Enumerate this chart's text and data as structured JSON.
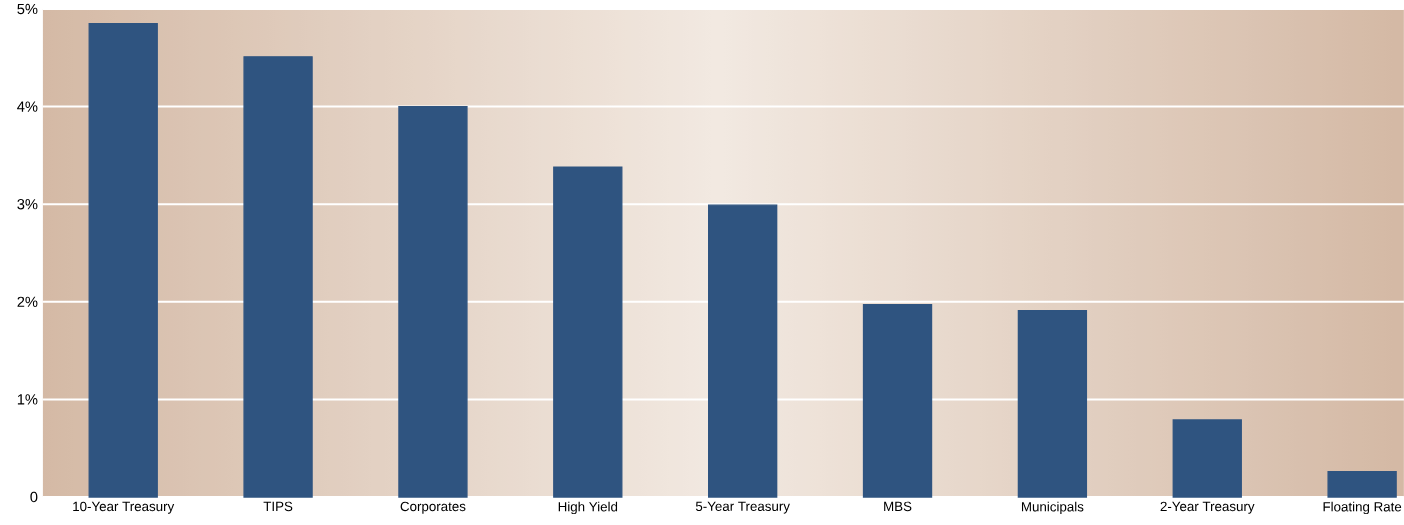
{
  "chart_data": {
    "type": "bar",
    "categories": [
      "10-Year Treasury",
      "TIPS",
      "Corporates",
      "High Yield",
      "5-Year Treasury",
      "MBS",
      "Municipals",
      "2-Year Treasury",
      "Floating Rate"
    ],
    "values": [
      4.85,
      4.51,
      4.0,
      3.38,
      2.99,
      1.97,
      1.91,
      0.79,
      0.26
    ],
    "color": "#2f5480",
    "ylim": [
      0,
      5
    ],
    "yticks": [
      {
        "value": 0,
        "label": "0"
      },
      {
        "value": 1,
        "label": "1%"
      },
      {
        "value": 2,
        "label": "2%"
      },
      {
        "value": 3,
        "label": "3%"
      },
      {
        "value": 4,
        "label": "4%"
      },
      {
        "value": 5,
        "label": "5%"
      }
    ],
    "grid": "y"
  }
}
